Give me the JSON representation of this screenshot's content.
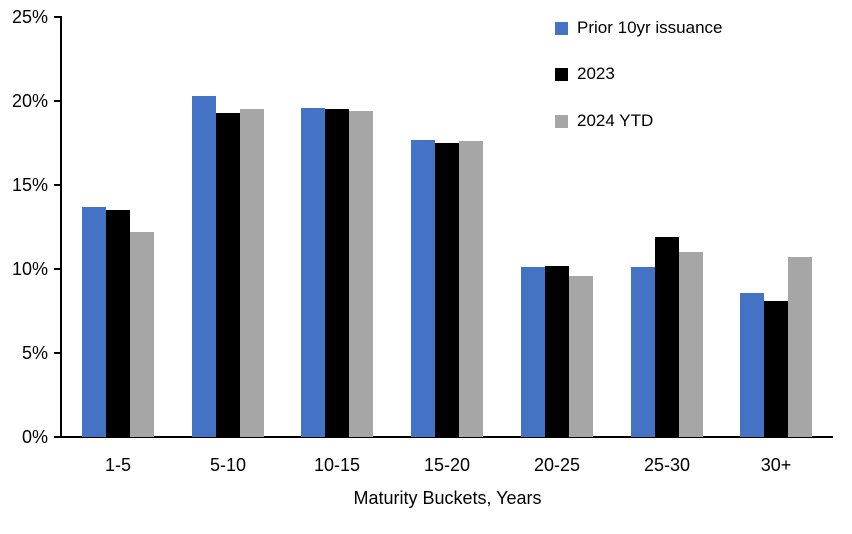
{
  "chart_data": {
    "type": "bar",
    "title": "",
    "categories": [
      "1-5",
      "5-10",
      "10-15",
      "15-20",
      "20-25",
      "25-30",
      "30+"
    ],
    "series": [
      {
        "name": "Prior 10yr issuance",
        "color": "#4472C4",
        "values": [
          13.7,
          20.3,
          19.6,
          17.7,
          10.1,
          10.1,
          8.6
        ]
      },
      {
        "name": "2023",
        "color": "#000000",
        "values": [
          13.5,
          19.3,
          19.5,
          17.5,
          10.2,
          11.9,
          8.1
        ]
      },
      {
        "name": "2024 YTD",
        "color": "#A6A6A6",
        "values": [
          12.2,
          19.5,
          19.4,
          17.6,
          9.6,
          11.0,
          10.7
        ]
      }
    ],
    "xlabel": "Maturity Buckets, Years",
    "ylabel": "",
    "ylim": [
      0,
      25
    ],
    "ytick_step": 5,
    "ytick_labels": [
      "0%",
      "5%",
      "10%",
      "15%",
      "20%",
      "25%"
    ],
    "grid": false,
    "legend_position": "top-right-inside",
    "axis_color": "#000000",
    "background_color": "#FFFFFF"
  }
}
